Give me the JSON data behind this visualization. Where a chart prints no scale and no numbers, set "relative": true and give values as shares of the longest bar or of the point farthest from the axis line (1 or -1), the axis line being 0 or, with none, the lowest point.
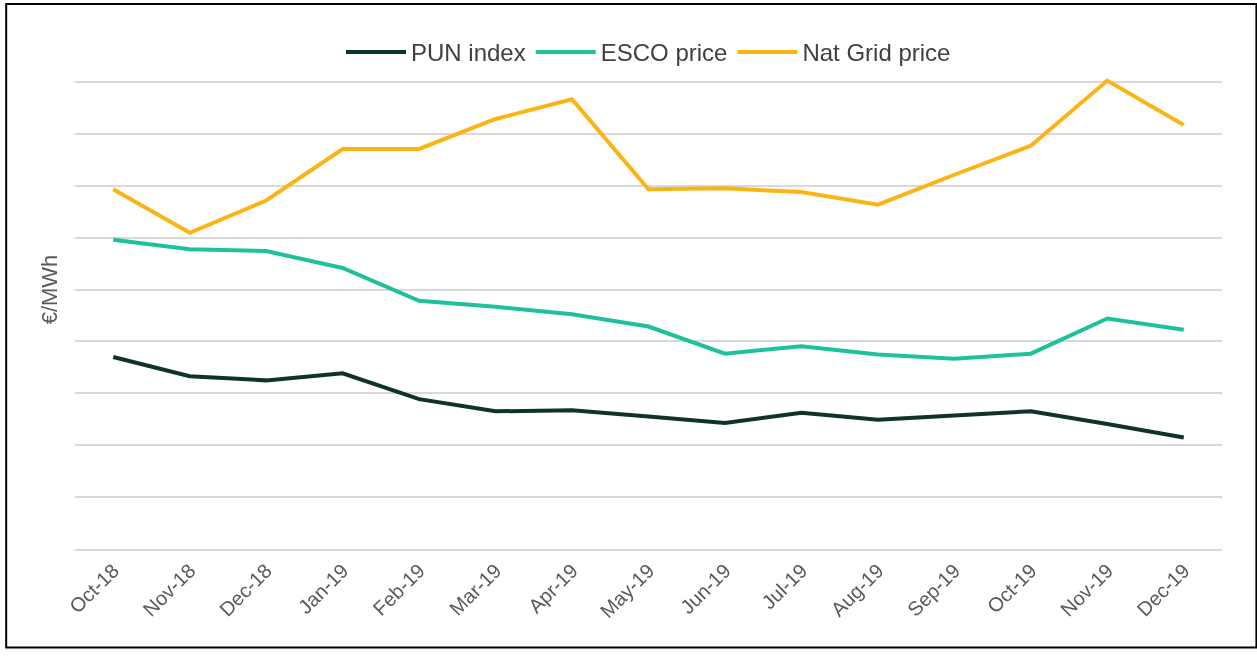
{
  "chart_data": {
    "type": "line",
    "relative": true,
    "ylabel": "€/MWh",
    "grid": "y",
    "legend": "top",
    "marker": "none",
    "line_style": "solid",
    "categories": [
      "Oct-18",
      "Nov-18",
      "Dec-18",
      "Jan-19",
      "Feb-19",
      "Mar-19",
      "Apr-19",
      "May-19",
      "Jun-19",
      "Jul-19",
      "Aug-19",
      "Sep-19",
      "Oct-19",
      "Nov-19",
      "Dec-19"
    ],
    "series": [
      {
        "name": "PUN index",
        "color": "#0f3328",
        "values": [
          0.41,
          0.369,
          0.36,
          0.375,
          0.32,
          0.294,
          0.296,
          0.283,
          0.269,
          0.291,
          0.276,
          0.285,
          0.294,
          0.267,
          0.238
        ]
      },
      {
        "name": "ESCO price",
        "color": "#1fc19b",
        "values": [
          0.66,
          0.64,
          0.636,
          0.6,
          0.53,
          0.517,
          0.501,
          0.475,
          0.417,
          0.433,
          0.415,
          0.406,
          0.417,
          0.492,
          0.468
        ]
      },
      {
        "name": "Nat Grid price",
        "color": "#fbb416",
        "values": [
          0.768,
          0.675,
          0.744,
          0.854,
          0.854,
          0.918,
          0.96,
          0.768,
          0.77,
          0.762,
          0.735,
          0.799,
          0.861,
          1,
          0.905
        ]
      }
    ]
  }
}
